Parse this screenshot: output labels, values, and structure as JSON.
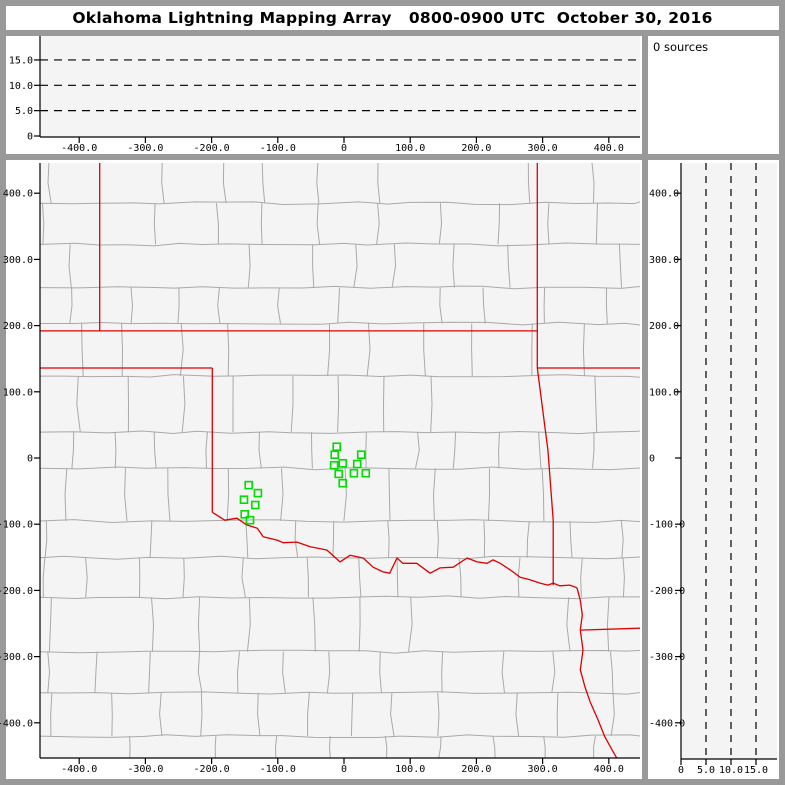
{
  "title": "Oklahoma Lightning Mapping Array   0800-0900 UTC  October 30, 2016",
  "colors": {
    "chrome": "#999999",
    "plot_background": "#f4f4f4",
    "county_line": "#a9a9a9",
    "state_border": "#dd0000",
    "station_marker": "#00dd00",
    "axis": "#000000"
  },
  "chart_data": [
    {
      "id": "ew_altitude_cross_section",
      "position": "top-left",
      "type": "scatter",
      "title": "altitude (km) vs east-west distance (km)",
      "xlim": [
        -459,
        447
      ],
      "ylim": [
        0,
        20
      ],
      "x_ticks_km": [
        -400,
        -300,
        -200,
        -100,
        0,
        100,
        200,
        300,
        400
      ],
      "x_tick_labels": [
        "-400.0",
        "-300.0",
        "-200.0",
        "-100.0",
        "0",
        "100.0",
        "200.0",
        "300.0",
        "400.0"
      ],
      "y_ticks_km": [
        15,
        10,
        5,
        0
      ],
      "y_tick_labels": [
        "15.0",
        "10.0",
        "5.0",
        "0"
      ],
      "reference_lines_km": [
        5,
        10,
        15
      ],
      "reference_line_style": "dashed",
      "points": []
    },
    {
      "id": "source_count",
      "position": "top-right",
      "type": "table",
      "values": [
        "0 sources"
      ]
    },
    {
      "id": "plan_view_map",
      "position": "main",
      "type": "scatter",
      "title": "plan view: east-west km vs north-south km",
      "xlim": [
        -459,
        447
      ],
      "ylim": [
        -450,
        446
      ],
      "x_ticks_km": [
        -400,
        -300,
        -200,
        -100,
        0,
        100,
        200,
        300,
        400
      ],
      "x_tick_labels": [
        "-400.0",
        "-300.0",
        "-200.0",
        "-100.0",
        "0",
        "100.0",
        "200.0",
        "300.0",
        "400.0"
      ],
      "y_ticks_km": [
        400,
        300,
        200,
        100,
        0,
        -100,
        -200,
        -300,
        -400
      ],
      "y_tick_labels": [
        "400.0",
        "300.0",
        "200.0",
        "100.0",
        "0",
        "-100.0",
        "-200.0",
        "-300.0",
        "-400.0"
      ],
      "stations_km": [
        [
          -11,
          17
        ],
        [
          -14,
          5
        ],
        [
          26,
          5
        ],
        [
          -15,
          -11
        ],
        [
          -2,
          -8
        ],
        [
          20,
          -9
        ],
        [
          -8,
          -24
        ],
        [
          15,
          -23
        ],
        [
          33,
          -23
        ],
        [
          -2,
          -38
        ],
        [
          -144,
          -41
        ],
        [
          -130,
          -53
        ],
        [
          -151,
          -63
        ],
        [
          -134,
          -71
        ],
        [
          -150,
          -85
        ],
        [
          -142,
          -94
        ]
      ],
      "state_borders_km": [
        [
          [
            -369,
            446
          ],
          [
            -369,
            192
          ]
        ],
        [
          [
            -459,
            192
          ],
          [
            292,
            192
          ]
        ],
        [
          [
            292,
            446
          ],
          [
            292,
            136
          ]
        ],
        [
          [
            292,
            136
          ],
          [
            452,
            136
          ]
        ],
        [
          [
            292,
            136
          ],
          [
            308,
            12
          ],
          [
            316,
            -94
          ],
          [
            316,
            -192
          ]
        ],
        [
          [
            -459,
            136
          ],
          [
            -199,
            136
          ]
        ],
        [
          [
            -199,
            136
          ],
          [
            -199,
            -82
          ]
        ],
        [
          [
            -199,
            -82
          ],
          [
            -180,
            -94
          ],
          [
            -162,
            -91
          ],
          [
            -147,
            -101
          ],
          [
            -131,
            -106
          ],
          [
            -122,
            -119
          ],
          [
            -101,
            -124
          ],
          [
            -92,
            -128
          ],
          [
            -71,
            -127
          ],
          [
            -51,
            -134
          ],
          [
            -26,
            -139
          ],
          [
            -6,
            -157
          ],
          [
            9,
            -147
          ],
          [
            29,
            -151
          ],
          [
            44,
            -165
          ],
          [
            59,
            -172
          ],
          [
            69,
            -174
          ],
          [
            80,
            -151
          ],
          [
            89,
            -159
          ],
          [
            110,
            -159
          ],
          [
            130,
            -174
          ],
          [
            145,
            -166
          ],
          [
            165,
            -165
          ],
          [
            186,
            -151
          ],
          [
            201,
            -157
          ],
          [
            216,
            -159
          ],
          [
            225,
            -154
          ],
          [
            236,
            -159
          ],
          [
            251,
            -169
          ],
          [
            266,
            -180
          ],
          [
            281,
            -184
          ],
          [
            296,
            -189
          ],
          [
            308,
            -192
          ],
          [
            316,
            -189
          ],
          [
            326,
            -193
          ],
          [
            341,
            -192
          ],
          [
            352,
            -196
          ]
        ],
        [
          [
            352,
            -196
          ],
          [
            357,
            -215
          ],
          [
            360,
            -237
          ],
          [
            357,
            -260
          ]
        ],
        [
          [
            357,
            -260
          ],
          [
            452,
            -257
          ]
        ],
        [
          [
            357,
            -260
          ],
          [
            361,
            -290
          ],
          [
            357,
            -320
          ],
          [
            364,
            -346
          ],
          [
            372,
            -369
          ],
          [
            384,
            -396
          ],
          [
            394,
            -421
          ],
          [
            405,
            -441
          ],
          [
            412,
            -453
          ]
        ]
      ]
    },
    {
      "id": "ns_altitude_cross_section",
      "position": "right",
      "type": "scatter",
      "title": "north-south distance (km) vs altitude (km)",
      "xlim": [
        0,
        19.2
      ],
      "ylim": [
        -450,
        446
      ],
      "x_ticks_km": [
        0,
        5,
        10,
        15
      ],
      "x_tick_labels": [
        "0",
        "5.0",
        "10.0",
        "15.0"
      ],
      "y_ticks_km": [
        400,
        300,
        200,
        100,
        0,
        -100,
        -200,
        -300,
        -400
      ],
      "y_tick_labels": [
        "400.0",
        "300.0",
        "200.0",
        "100.0",
        "0",
        "-100.0",
        "-200.0",
        "-300.0",
        "-400.0"
      ],
      "reference_lines_km": [
        5,
        10,
        15
      ],
      "reference_line_style": "dashed",
      "points": []
    }
  ]
}
